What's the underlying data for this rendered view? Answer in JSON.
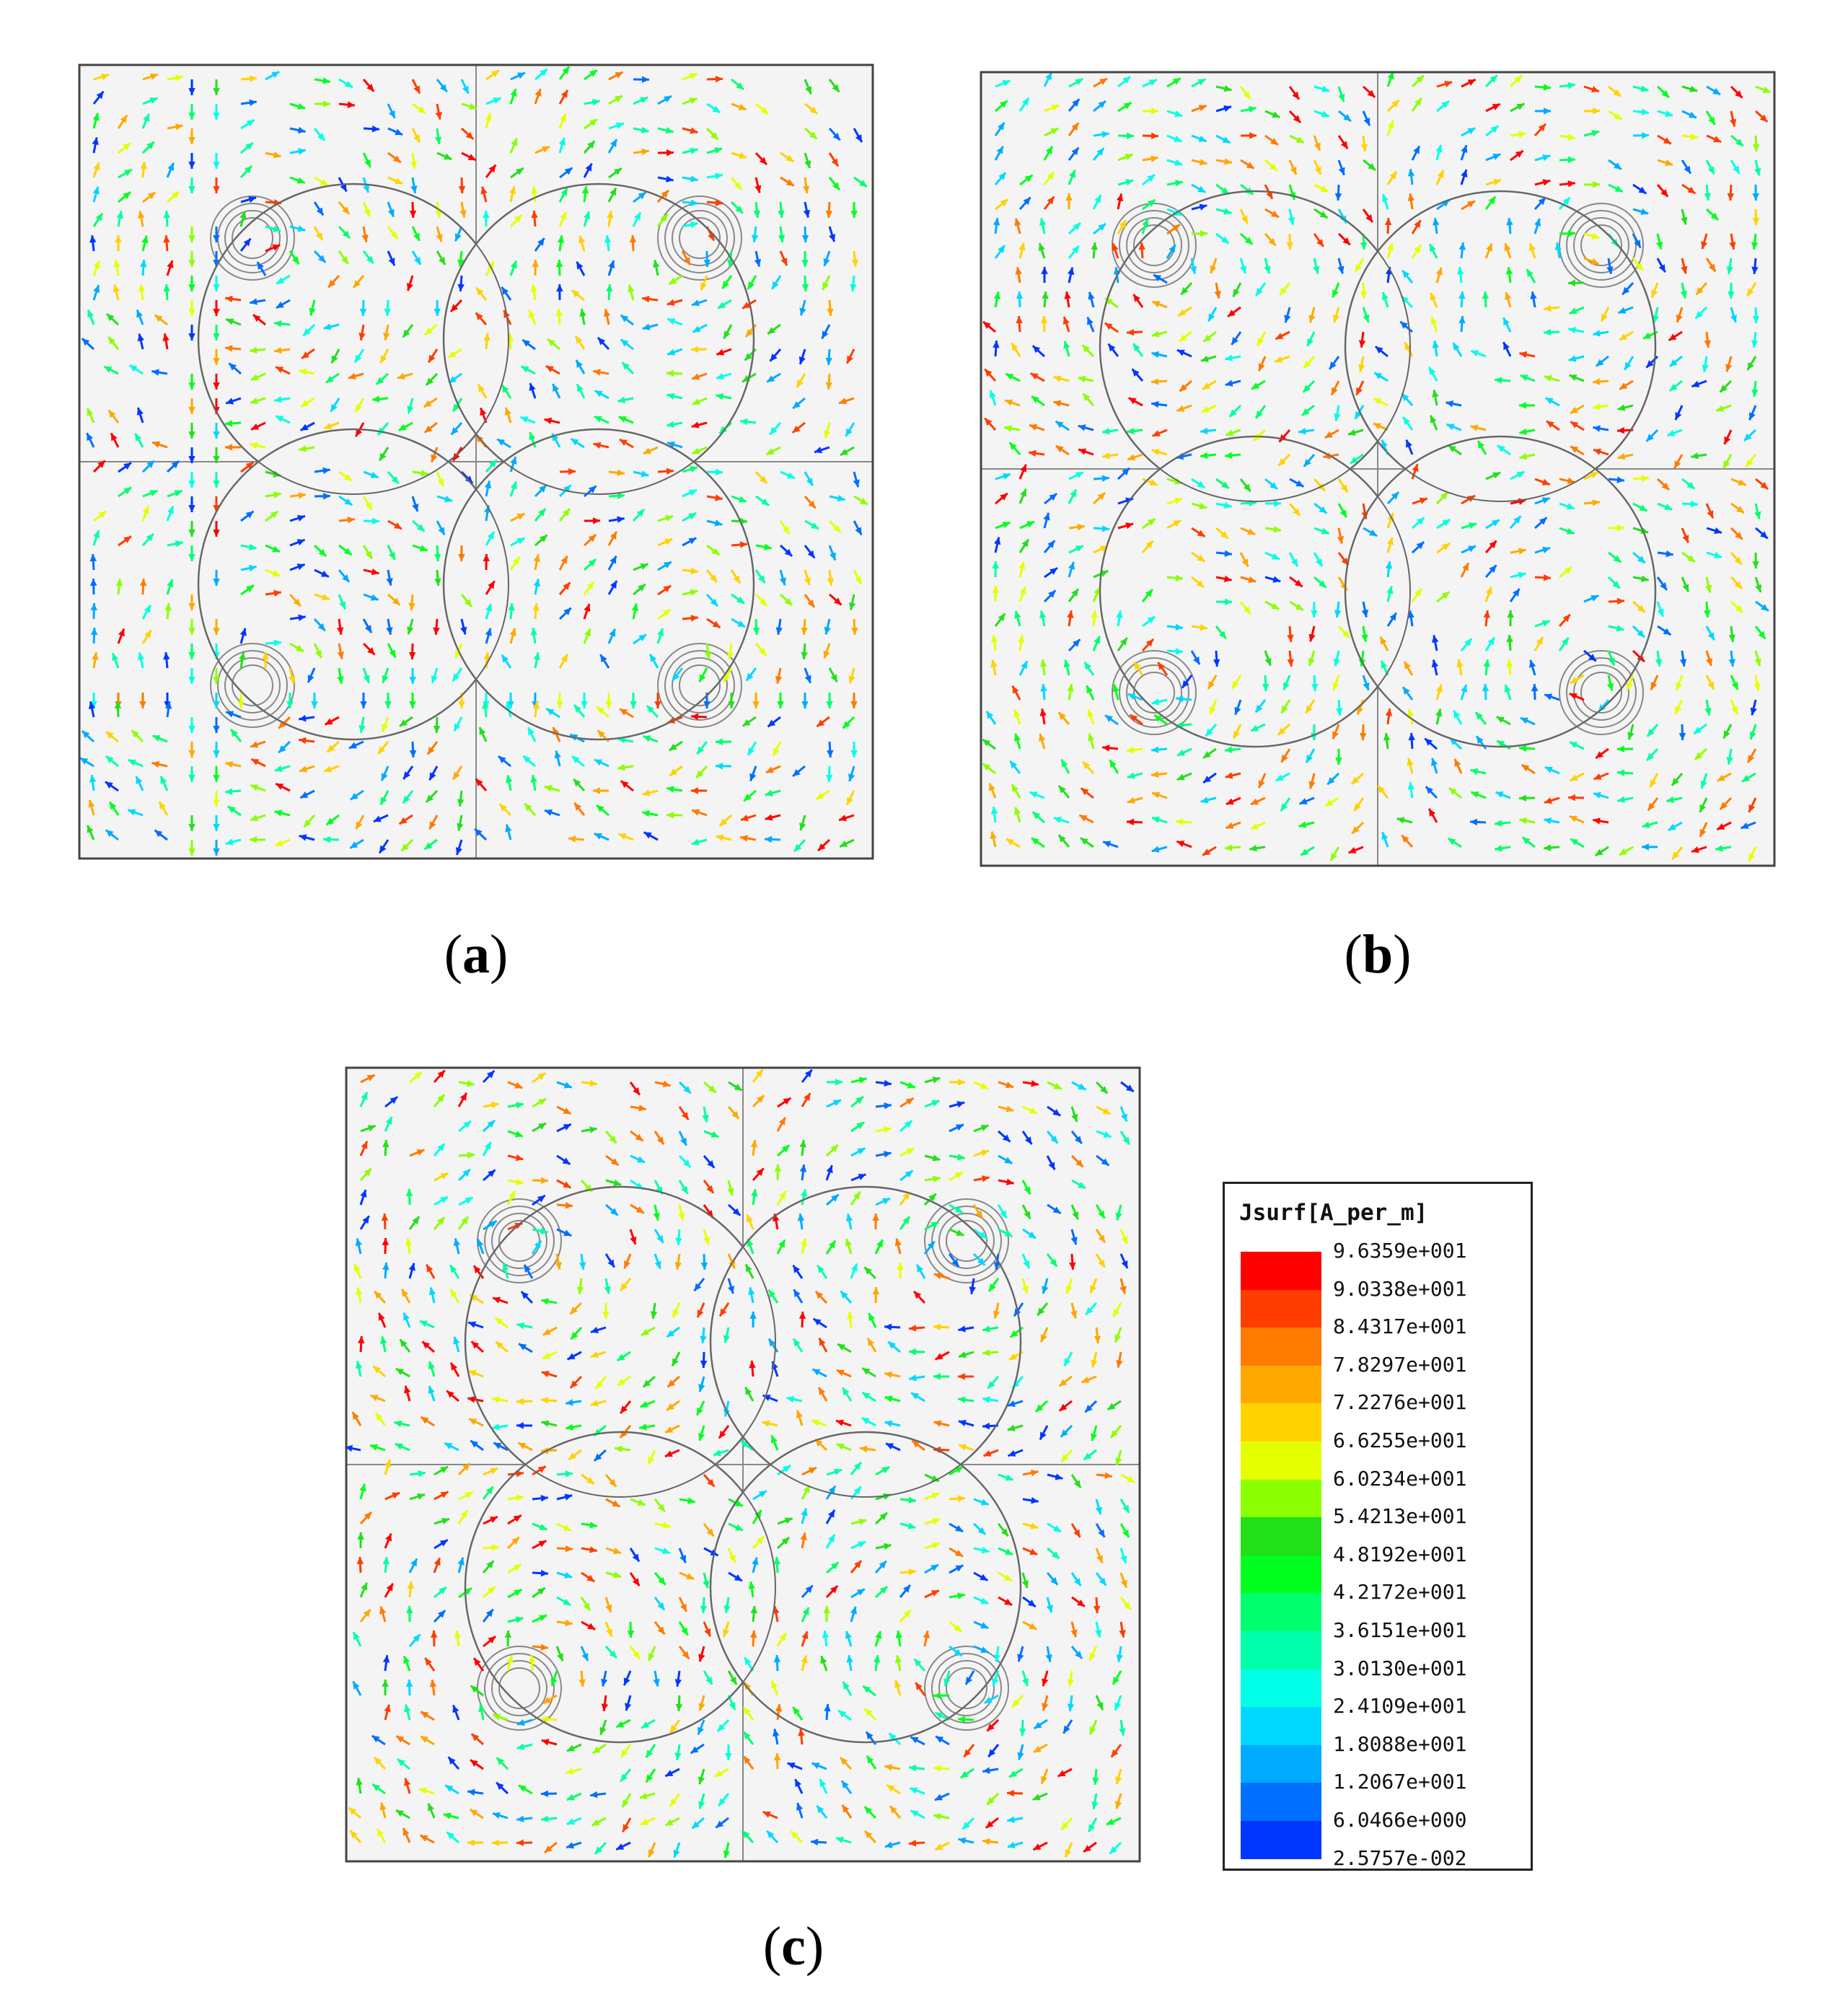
{
  "panels": [
    {
      "id": "a",
      "label": "a"
    },
    {
      "id": "b",
      "label": "b"
    },
    {
      "id": "c",
      "label": "c"
    }
  ],
  "legend": {
    "title": "Jsurf[A_per_m]",
    "entries": [
      {
        "value": "9.6359e+001",
        "color": "#ff0000"
      },
      {
        "value": "9.0338e+001",
        "color": "#ff3d00"
      },
      {
        "value": "8.4317e+001",
        "color": "#ff7a00"
      },
      {
        "value": "7.8297e+001",
        "color": "#ffa800"
      },
      {
        "value": "7.2276e+001",
        "color": "#ffd200"
      },
      {
        "value": "6.6255e+001",
        "color": "#e6ff00"
      },
      {
        "value": "6.0234e+001",
        "color": "#8cff00"
      },
      {
        "value": "5.4213e+001",
        "color": "#22e01a"
      },
      {
        "value": "4.8192e+001",
        "color": "#00ff1e"
      },
      {
        "value": "4.2172e+001",
        "color": "#00ff6e"
      },
      {
        "value": "3.6151e+001",
        "color": "#00ffaa"
      },
      {
        "value": "3.0130e+001",
        "color": "#00ffe6"
      },
      {
        "value": "2.4109e+001",
        "color": "#00d8ff"
      },
      {
        "value": "1.8088e+001",
        "color": "#00aaff"
      },
      {
        "value": "1.2067e+001",
        "color": "#006eff"
      },
      {
        "value": "6.0466e+000",
        "color": "#0036ff"
      },
      {
        "value": "2.5757e-002",
        "color": "#0000ff"
      }
    ]
  }
}
